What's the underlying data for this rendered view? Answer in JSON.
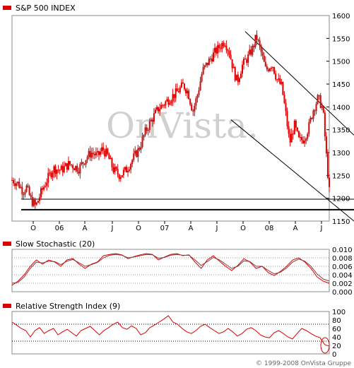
{
  "watermark": "OnVista.",
  "copyright": "© 1999-2008 OnVista Gruppe",
  "colors": {
    "series": "#dd0000",
    "frame": "#888888",
    "grid": "#999999"
  },
  "chart_data": [
    {
      "type": "candlestick",
      "title": "S&P 500 INDEX",
      "x_tick_labels": [
        "O",
        "06",
        "A",
        "J",
        "O",
        "07",
        "A",
        "J",
        "O",
        "08",
        "A",
        "J"
      ],
      "y_ticks": [
        1150,
        1200,
        1250,
        1300,
        1350,
        1400,
        1450,
        1500,
        1550,
        1600
      ],
      "ylim": [
        1150,
        1600
      ],
      "support_lines": [
        1175,
        1198
      ],
      "channel": "descending",
      "close_path": [
        [
          0,
          1240
        ],
        [
          0.02,
          1232
        ],
        [
          0.035,
          1215
        ],
        [
          0.045,
          1225
        ],
        [
          0.06,
          1196
        ],
        [
          0.075,
          1182
        ],
        [
          0.09,
          1210
        ],
        [
          0.11,
          1240
        ],
        [
          0.13,
          1265
        ],
        [
          0.155,
          1262
        ],
        [
          0.18,
          1275
        ],
        [
          0.21,
          1265
        ],
        [
          0.235,
          1290
        ],
        [
          0.25,
          1300
        ],
        [
          0.27,
          1292
        ],
        [
          0.285,
          1308
        ],
        [
          0.3,
          1295
        ],
        [
          0.32,
          1262
        ],
        [
          0.34,
          1250
        ],
        [
          0.36,
          1262
        ],
        [
          0.38,
          1285
        ],
        [
          0.4,
          1308
        ],
        [
          0.42,
          1345
        ],
        [
          0.44,
          1372
        ],
        [
          0.46,
          1395
        ],
        [
          0.48,
          1408
        ],
        [
          0.5,
          1420
        ],
        [
          0.52,
          1432
        ],
        [
          0.54,
          1448
        ],
        [
          0.555,
          1432
        ],
        [
          0.57,
          1390
        ],
        [
          0.585,
          1428
        ],
        [
          0.6,
          1478
        ],
        [
          0.62,
          1500
        ],
        [
          0.64,
          1520
        ],
        [
          0.655,
          1532
        ],
        [
          0.67,
          1545
        ],
        [
          0.685,
          1520
        ],
        [
          0.7,
          1475
        ],
        [
          0.71,
          1455
        ],
        [
          0.725,
          1490
        ],
        [
          0.745,
          1510
        ],
        [
          0.76,
          1530
        ],
        [
          0.77,
          1555
        ],
        [
          0.785,
          1520
        ],
        [
          0.8,
          1480
        ],
        [
          0.82,
          1495
        ],
        [
          0.835,
          1460
        ],
        [
          0.85,
          1445
        ],
        [
          0.865,
          1375
        ],
        [
          0.875,
          1320
        ],
        [
          0.89,
          1360
        ],
        [
          0.905,
          1325
        ],
        [
          0.92,
          1330
        ],
        [
          0.935,
          1355
        ],
        [
          0.95,
          1395
        ],
        [
          0.965,
          1420
        ],
        [
          0.98,
          1395
        ],
        [
          0.99,
          1300
        ],
        [
          1.0,
          1215
        ]
      ]
    },
    {
      "type": "line",
      "title": "Slow Stochastic (20)",
      "y_ticks": [
        "0.010",
        "0.008",
        "0.006",
        "0.004",
        "0.002",
        "0.000"
      ],
      "ylim": [
        0,
        0.01
      ],
      "series": [
        {
          "values": [
            0.0015,
            0.0025,
            0.004,
            0.006,
            0.0075,
            0.0065,
            0.0075,
            0.007,
            0.006,
            0.0075,
            0.0078,
            0.0065,
            0.0055,
            0.0065,
            0.007,
            0.0085,
            0.0088,
            0.009,
            0.0087,
            0.0078,
            0.0083,
            0.0087,
            0.009,
            0.0088,
            0.0075,
            0.0082,
            0.0088,
            0.009,
            0.0085,
            0.0087,
            0.007,
            0.0055,
            0.0075,
            0.0085,
            0.0072,
            0.006,
            0.005,
            0.0062,
            0.0078,
            0.007,
            0.0055,
            0.006,
            0.0045,
            0.0038,
            0.0048,
            0.006,
            0.0075,
            0.008,
            0.007,
            0.0055,
            0.0035,
            0.0025,
            0.002
          ]
        },
        {
          "values": [
            0.002,
            0.0022,
            0.0035,
            0.0055,
            0.007,
            0.0068,
            0.0072,
            0.0071,
            0.0064,
            0.0072,
            0.0076,
            0.0068,
            0.006,
            0.0064,
            0.0069,
            0.008,
            0.0086,
            0.0088,
            0.0086,
            0.008,
            0.0082,
            0.0085,
            0.0088,
            0.0087,
            0.0079,
            0.0081,
            0.0086,
            0.0088,
            0.0086,
            0.0086,
            0.0075,
            0.0062,
            0.0071,
            0.0081,
            0.0075,
            0.0065,
            0.0055,
            0.006,
            0.0073,
            0.0071,
            0.006,
            0.006,
            0.005,
            0.0042,
            0.0046,
            0.0056,
            0.007,
            0.0077,
            0.0072,
            0.006,
            0.0042,
            0.003,
            0.0025
          ]
        }
      ]
    },
    {
      "type": "line",
      "title": "Relative Strength Index (9)",
      "y_ticks": [
        100,
        80,
        60,
        40,
        20,
        0
      ],
      "ylim": [
        0,
        100
      ],
      "reference_lines": [
        70,
        30
      ],
      "series": [
        {
          "values": [
            75,
            68,
            60,
            55,
            40,
            55,
            62,
            48,
            55,
            60,
            45,
            52,
            58,
            50,
            42,
            55,
            60,
            65,
            55,
            45,
            55,
            62,
            70,
            75,
            62,
            58,
            66,
            60,
            45,
            50,
            62,
            68,
            75,
            82,
            90,
            75,
            70,
            60,
            52,
            48,
            55,
            65,
            70,
            62,
            55,
            48,
            52,
            60,
            52,
            42,
            48,
            58,
            62,
            55,
            45,
            40,
            38,
            50,
            55,
            48,
            40,
            35,
            48,
            60,
            55,
            48,
            42,
            38,
            22,
            18
          ]
        }
      ]
    }
  ]
}
